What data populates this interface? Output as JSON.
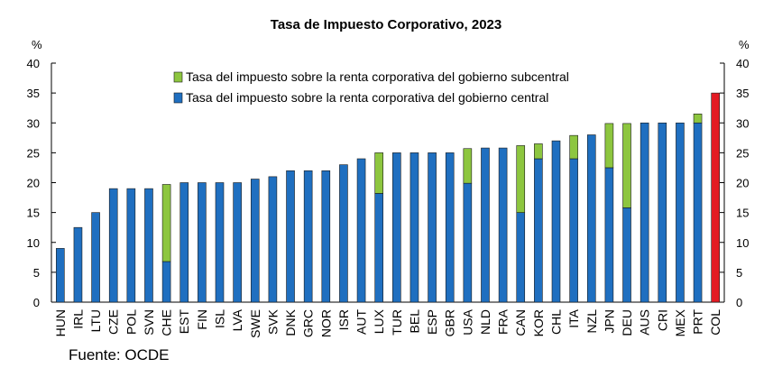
{
  "chart_data": {
    "type": "bar",
    "stacked": true,
    "title": "Tasa de Impuesto Corporativo, 2023",
    "y_unit_left": "%",
    "y_unit_right": "%",
    "ylim": [
      0,
      40
    ],
    "yticks": [
      0,
      5,
      10,
      15,
      20,
      25,
      30,
      35,
      40
    ],
    "grid": false,
    "legend_position": "top-left",
    "categories": [
      "HUN",
      "IRL",
      "LTU",
      "CZE",
      "POL",
      "SVN",
      "CHE",
      "EST",
      "FIN",
      "ISL",
      "LVA",
      "SWE",
      "SVK",
      "DNK",
      "GRC",
      "NOR",
      "ISR",
      "AUT",
      "LUX",
      "TUR",
      "BEL",
      "ESP",
      "GBR",
      "USA",
      "NLD",
      "FRA",
      "CAN",
      "KOR",
      "CHL",
      "ITA",
      "NZL",
      "JPN",
      "DEU",
      "AUS",
      "CRI",
      "MEX",
      "PRT",
      "COL"
    ],
    "series": [
      {
        "name": "Tasa del impuesto sobre la renta corporativa del gobierno central",
        "color": "#1F6FC0",
        "values": [
          9,
          12.5,
          15,
          19,
          19,
          19,
          6.8,
          20,
          20,
          20,
          20,
          20.6,
          21,
          22,
          22,
          22,
          23,
          24,
          18.2,
          25,
          25,
          25,
          25,
          19.9,
          25.8,
          25.8,
          15,
          24,
          27,
          24,
          28,
          22.5,
          15.8,
          30,
          30,
          30,
          30,
          35
        ]
      },
      {
        "name": "Tasa del impuesto sobre la renta corporativa del gobierno subcentral",
        "color": "#8DC63F",
        "values": [
          0,
          0,
          0,
          0,
          0,
          0,
          12.9,
          0,
          0,
          0,
          0,
          0,
          0,
          0,
          0,
          0,
          0,
          0,
          6.8,
          0,
          0,
          0,
          0,
          5.8,
          0,
          0,
          11.2,
          2.5,
          0,
          3.9,
          0,
          7.4,
          14.1,
          0,
          0,
          0,
          1.5,
          0
        ]
      }
    ],
    "highlight": {
      "category": "COL",
      "color": "#E31B23"
    },
    "source": "Fuente: OCDE"
  }
}
